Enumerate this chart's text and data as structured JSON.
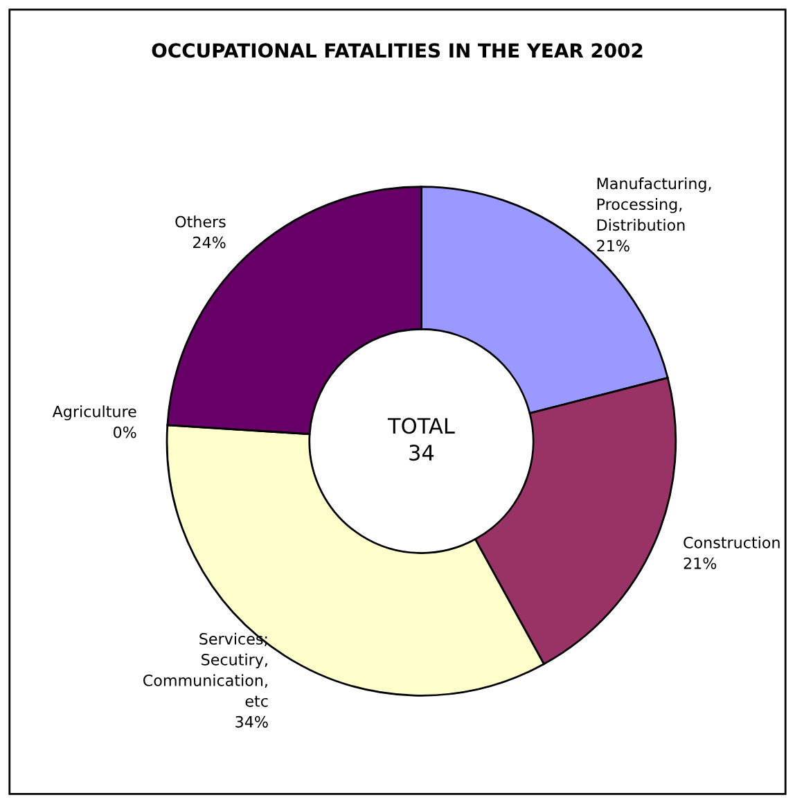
{
  "chart_data": {
    "type": "donut",
    "title": "OCCUPATIONAL FATALITIES IN THE YEAR 2002",
    "categories": [
      "Manufacturing,\nProcessing,\nDistribution",
      "Construction",
      "Services;\nSecutiry,\nCommunication,\netc",
      "Agriculture",
      "Others"
    ],
    "values": [
      21,
      21,
      34,
      0,
      24
    ],
    "value_labels": [
      "21%",
      "21%",
      "34%",
      "0%",
      "24%"
    ],
    "colors": [
      "#9999ff",
      "#993366",
      "#ffffcc",
      "#ccffff",
      "#660066"
    ],
    "annotations": [
      "TOTAL\n34"
    ],
    "legend": false
  }
}
